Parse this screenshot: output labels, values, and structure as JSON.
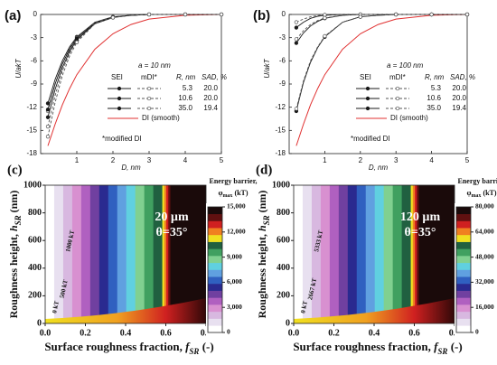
{
  "chart_data": [
    {
      "type": "line",
      "panel_label": "(a)",
      "annotation": "a = 10 nm",
      "note": "*modified DI",
      "xlabel": "D, nm",
      "ylabel": "U/akT",
      "x": [
        0.2,
        0.4,
        0.6,
        0.8,
        1,
        1.5,
        2,
        2.5,
        3,
        4,
        5
      ],
      "xlim": [
        0,
        5
      ],
      "xticks": [
        1,
        2,
        3,
        4,
        5
      ],
      "ylim": [
        -18,
        0
      ],
      "yticks": [
        0,
        -3,
        -6,
        -9,
        -12,
        -15,
        -18
      ],
      "groups": [
        {
          "name": "SEI",
          "color": "#1a1a1a",
          "dashed": false,
          "filled": true
        },
        {
          "name": "mDI*",
          "color": "#555555",
          "dashed": true,
          "filled": false
        }
      ],
      "headers": [
        "R, nm",
        "SAD, %"
      ],
      "rows": [
        {
          "R": "5.3",
          "SAD": "20.0",
          "values": [
            [
              -11.5,
              -8.4,
              -6,
              -4.2,
              -2.9,
              -1.0,
              -0.3,
              -0.1,
              0,
              0,
              0
            ],
            [
              -12.5,
              -9,
              -6.4,
              -4.4,
              -3.0,
              -1.0,
              -0.3,
              -0.1,
              0,
              0,
              0
            ]
          ]
        },
        {
          "R": "10.6",
          "SAD": "20.0",
          "values": [
            [
              -12.3,
              -9,
              -6.4,
              -4.5,
              -3.1,
              -1.1,
              -0.35,
              -0.1,
              0,
              0,
              0
            ],
            [
              -14.5,
              -10.5,
              -7.3,
              -5,
              -3.4,
              -1.1,
              -0.35,
              -0.1,
              0,
              0,
              0
            ]
          ]
        },
        {
          "R": "35.0",
          "SAD": "19.4",
          "values": [
            [
              -13.3,
              -9.7,
              -6.9,
              -4.8,
              -3.3,
              -1.2,
              -0.4,
              -0.1,
              0,
              0,
              0
            ],
            [
              -15.8,
              -11.4,
              -7.9,
              -5.4,
              -3.6,
              -1.2,
              -0.4,
              -0.1,
              0,
              0,
              0
            ]
          ]
        }
      ],
      "reference": {
        "name": "DI (smooth)",
        "color": "#e03030",
        "values": [
          -17,
          -14.2,
          -11.7,
          -9.6,
          -7.8,
          -4.5,
          -2.5,
          -1.3,
          -0.6,
          -0.1,
          0
        ]
      }
    },
    {
      "type": "line",
      "panel_label": "(b)",
      "annotation": "a = 100 nm",
      "note": "*modified DI",
      "xlabel": "D, nm",
      "ylabel": "U/akT",
      "x": [
        0.2,
        0.4,
        0.6,
        0.8,
        1,
        1.5,
        2,
        2.5,
        3,
        4,
        5
      ],
      "xlim": [
        0,
        5
      ],
      "xticks": [
        1,
        2,
        3,
        4,
        5
      ],
      "ylim": [
        -18,
        0
      ],
      "yticks": [
        0,
        -3,
        -6,
        -9,
        -12,
        -15,
        -18
      ],
      "groups": [
        {
          "name": "SEI",
          "color": "#1a1a1a",
          "dashed": false,
          "filled": true
        },
        {
          "name": "mDI*",
          "color": "#555555",
          "dashed": true,
          "filled": false
        }
      ],
      "headers": [
        "R, nm",
        "SAD, %"
      ],
      "rows": [
        {
          "R": "5.3",
          "SAD": "20.0",
          "values": [
            [
              -1.7,
              -1.0,
              -0.5,
              -0.25,
              -0.1,
              0,
              0,
              0,
              0,
              0,
              0
            ],
            [
              -1.0,
              -0.6,
              -0.3,
              -0.15,
              -0.05,
              0,
              0,
              0,
              0,
              0,
              0
            ]
          ]
        },
        {
          "R": "10.6",
          "SAD": "20.0",
          "values": [
            [
              -3.7,
              -2.4,
              -1.5,
              -0.9,
              -0.5,
              -0.1,
              0,
              0,
              0,
              0,
              0
            ],
            [
              -3.2,
              -2.1,
              -1.3,
              -0.8,
              -0.45,
              -0.1,
              0,
              0,
              0,
              0,
              0
            ]
          ]
        },
        {
          "R": "35.0",
          "SAD": "19.4",
          "values": [
            [
              -12.5,
              -8.8,
              -6.2,
              -4.3,
              -2.9,
              -1.0,
              -0.3,
              -0.1,
              0,
              0,
              0
            ],
            [
              -12.2,
              -8.6,
              -6.0,
              -4.2,
              -2.8,
              -1.0,
              -0.3,
              -0.1,
              0,
              0,
              0
            ]
          ]
        }
      ],
      "reference": {
        "name": "DI (smooth)",
        "color": "#e03030",
        "values": [
          -17,
          -14.2,
          -11.7,
          -9.6,
          -7.8,
          -4.5,
          -2.5,
          -1.3,
          -0.6,
          -0.1,
          0
        ]
      }
    },
    {
      "type": "contour",
      "panel_label": "(c)",
      "size_label": "20 µm",
      "angle_label": "θ=35°",
      "contour_labels": [
        "1000 kT",
        "500 kT",
        "0 kT"
      ],
      "xlabel": [
        "Surface roughness fraction, ",
        "f",
        "SR",
        " (-)"
      ],
      "ylabel": [
        "Roughness height, ",
        "h",
        "SR",
        " (nm)"
      ],
      "xlim": [
        0,
        0.8
      ],
      "xticks": [
        {
          "value": 0,
          "label": "0.0"
        },
        0.2,
        0.4,
        0.6,
        0.8
      ],
      "ylim": [
        0,
        1000
      ],
      "yticks": [
        0,
        200,
        400,
        600,
        800,
        1000
      ],
      "colorbar_title": [
        "Energy barrier,",
        "φ",
        "max",
        " (kT)"
      ],
      "zlim": [
        0,
        15000
      ],
      "zticks": [
        0,
        {
          "value": 3000,
          "label": "3,000"
        },
        {
          "value": 6000,
          "label": "6,000"
        },
        {
          "value": 9000,
          "label": "9,000"
        },
        {
          "value": 12000,
          "label": "12,000"
        },
        {
          "value": 15000,
          "label": "15,000"
        }
      ],
      "colors": [
        "#ffffff",
        "#e8e0f0",
        "#d8b8e0",
        "#d890d0",
        "#b060c0",
        "#7040a0",
        "#2a2a90",
        "#3060c0",
        "#60a0e0",
        "#60d0e0",
        "#80d090",
        "#40a060",
        "#206040",
        "#f0e020",
        "#f08020",
        "#d02020",
        "#601010",
        "#1a0a0a"
      ]
    },
    {
      "type": "contour",
      "panel_label": "(d)",
      "size_label": "120 µm",
      "angle_label": "θ=35°",
      "contour_labels": [
        "5333 kT",
        "2667 kT",
        "0 kT"
      ],
      "xlabel": [
        "Surface roughness fraction, ",
        "f",
        "SR",
        " (-)"
      ],
      "ylabel": [
        "Roughness height, ",
        "h",
        "SR",
        " (nm)"
      ],
      "xlim": [
        0,
        0.8
      ],
      "xticks": [
        {
          "value": 0,
          "label": "0.0"
        },
        0.2,
        0.4,
        0.6,
        0.8
      ],
      "ylim": [
        0,
        1000
      ],
      "yticks": [
        0,
        200,
        400,
        600,
        800,
        1000
      ],
      "colorbar_title": [
        "Energy barrier,",
        "φ",
        "max",
        " (kT)"
      ],
      "zlim": [
        0,
        80000
      ],
      "zticks": [
        0,
        {
          "value": 16000,
          "label": "16,000"
        },
        {
          "value": 32000,
          "label": "32,000"
        },
        {
          "value": 48000,
          "label": "48,000"
        },
        {
          "value": 64000,
          "label": "64,000"
        },
        {
          "value": 80000,
          "label": "80,000"
        }
      ],
      "colors": [
        "#ffffff",
        "#e8e0f0",
        "#d8b8e0",
        "#d890d0",
        "#b060c0",
        "#7040a0",
        "#2a2a90",
        "#3060c0",
        "#60a0e0",
        "#60d0e0",
        "#80d090",
        "#40a060",
        "#206040",
        "#f0e020",
        "#f08020",
        "#d02020",
        "#601010",
        "#1a0a0a"
      ]
    }
  ]
}
